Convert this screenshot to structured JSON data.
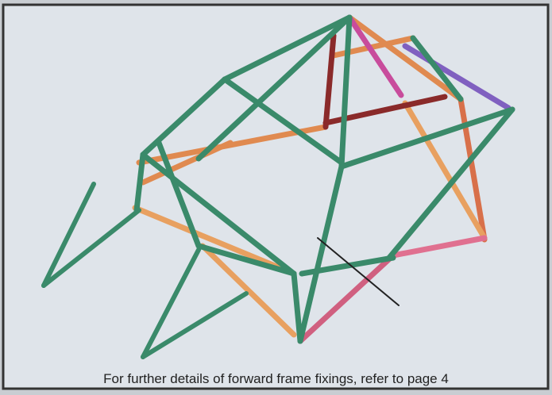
{
  "caption": "For further details of forward frame fixings, refer to page 4"
}
